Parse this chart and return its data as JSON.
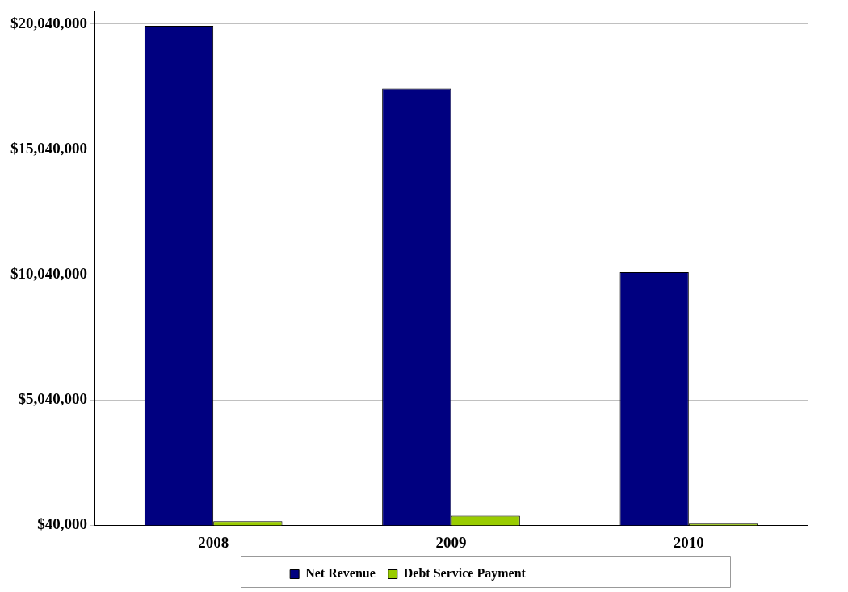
{
  "chart_data": {
    "type": "bar",
    "categories": [
      "2008",
      "2009",
      "2010"
    ],
    "series": [
      {
        "name": "Net Revenue",
        "color": "#000080",
        "values": [
          19970000,
          17470000,
          10140000
        ]
      },
      {
        "name": "Debt Service Payment",
        "color": "#99cc00",
        "values": [
          200000,
          420000,
          100000
        ]
      }
    ],
    "ylim": [
      40000,
      20540000
    ],
    "yticks": [
      {
        "value": 40000,
        "label": "$40,000"
      },
      {
        "value": 5040000,
        "label": "$5,040,000"
      },
      {
        "value": 10040000,
        "label": "$10,040,000"
      },
      {
        "value": 15040000,
        "label": "$15,040,000"
      },
      {
        "value": 20040000,
        "label": "$20,040,000"
      }
    ],
    "grid": "y",
    "legend": "bottom"
  }
}
